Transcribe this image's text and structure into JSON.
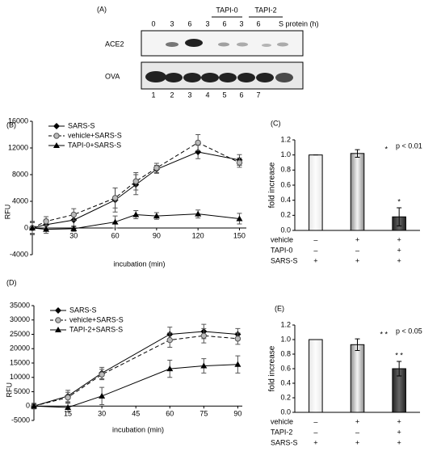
{
  "blot": {
    "label": "(A)",
    "lanes": [
      "0",
      "3",
      "6",
      "3",
      "6",
      "3",
      "6"
    ],
    "unit_label": "S protein (h)",
    "groups": [
      "TAPI-0",
      "TAPI-2"
    ],
    "rows": [
      "ACE2",
      "OVA"
    ],
    "lane_numbers": [
      "1",
      "2",
      "3",
      "4",
      "5",
      "6",
      "7"
    ]
  },
  "chart_data": [
    {
      "type": "line",
      "panel": "(B)",
      "ylabel": "RFU",
      "xlabel": "incubation (min)",
      "xlim": [
        0,
        155
      ],
      "xticks": [
        30,
        60,
        90,
        120,
        150
      ],
      "ylim": [
        -4000,
        16000
      ],
      "yticks": [
        -4000,
        0,
        4000,
        8000,
        12000,
        16000
      ],
      "legend": "upper left",
      "x": [
        0,
        10,
        30,
        60,
        75,
        90,
        120,
        150
      ],
      "series": [
        {
          "name": "SARS-S",
          "color": "#000000",
          "marker": "diamond",
          "linestyle": "solid",
          "values": [
            0,
            500,
            1200,
            4200,
            6500,
            8800,
            11400,
            10200
          ],
          "errors": [
            1000,
            800,
            1000,
            1800,
            1500,
            600,
            1000,
            800
          ]
        },
        {
          "name": "vehicle+SARS-S",
          "color": "#999999",
          "marker": "circle",
          "linestyle": "dashed",
          "values": [
            0,
            1000,
            2000,
            4500,
            7000,
            9000,
            12800,
            9800
          ],
          "errors": [
            800,
            700,
            900,
            1500,
            1300,
            700,
            1200,
            700
          ]
        },
        {
          "name": "TAPI-0+SARS-S",
          "color": "#000000",
          "marker": "triangle",
          "linestyle": "solid",
          "values": [
            0,
            -200,
            -100,
            900,
            2000,
            1800,
            2100,
            1400
          ],
          "errors": [
            900,
            600,
            400,
            900,
            600,
            500,
            600,
            800
          ]
        }
      ]
    },
    {
      "type": "bar",
      "panel": "(C)",
      "ylabel": "fold increase",
      "ylim": [
        0,
        1.2
      ],
      "yticks": [
        {
          "value": 0,
          "label": "0.0"
        },
        {
          "value": 0.2,
          "label": "0.2"
        },
        {
          "value": 0.4,
          "label": "0.4"
        },
        {
          "value": 0.6,
          "label": "0.6"
        },
        {
          "value": 0.8,
          "label": "0.8"
        },
        {
          "value": 1,
          "label": "1.0"
        },
        {
          "value": 1.2,
          "label": "1.2"
        }
      ],
      "values": [
        1.0,
        1.02,
        0.18
      ],
      "errors": [
        0,
        0.05,
        0.12
      ],
      "colors": [
        "#e6e6e6",
        "#8a8a8a",
        "#202020"
      ],
      "significance": {
        "p_text": "p < 0.01",
        "legend_mark": "*",
        "bar_marks": [
          null,
          null,
          "*"
        ]
      },
      "conditions": [
        {
          "name": "vehicle",
          "signs": [
            "–",
            "+",
            "+"
          ]
        },
        {
          "name": "TAPI-0",
          "signs": [
            "–",
            "–",
            "+"
          ]
        },
        {
          "name": "SARS-S",
          "signs": [
            "+",
            "+",
            "+"
          ]
        }
      ]
    },
    {
      "type": "line",
      "panel": "(D)",
      "ylabel": "RFU",
      "xlabel": "incubation (min)",
      "xlim": [
        0,
        92
      ],
      "xticks": [
        15,
        30,
        45,
        60,
        75,
        90
      ],
      "ylim": [
        -5000,
        35000
      ],
      "yticks": [
        -5000,
        0,
        5000,
        10000,
        15000,
        20000,
        25000,
        30000,
        35000
      ],
      "legend": "upper left",
      "x": [
        0,
        15,
        30,
        60,
        75,
        90
      ],
      "series": [
        {
          "name": "SARS-S",
          "color": "#000000",
          "marker": "diamond",
          "linestyle": "solid",
          "values": [
            0,
            3500,
            11500,
            25000,
            26000,
            25000
          ],
          "errors": [
            1000,
            2000,
            2000,
            2500,
            2500,
            2000
          ]
        },
        {
          "name": "vehicle+SARS-S",
          "color": "#999999",
          "marker": "circle",
          "linestyle": "dashed",
          "values": [
            0,
            3000,
            11000,
            23000,
            24500,
            23500
          ],
          "errors": [
            800,
            1800,
            1800,
            2500,
            2500,
            2000
          ]
        },
        {
          "name": "TAPI-2+SARS-S",
          "color": "#000000",
          "marker": "triangle",
          "linestyle": "solid",
          "values": [
            0,
            -500,
            3500,
            13000,
            14000,
            14500
          ],
          "errors": [
            500,
            1500,
            3000,
            3000,
            2500,
            3000
          ]
        }
      ]
    },
    {
      "type": "bar",
      "panel": "(E)",
      "ylabel": "fold increase",
      "ylim": [
        0,
        1.2
      ],
      "yticks": [
        {
          "value": 0,
          "label": "0.0"
        },
        {
          "value": 0.2,
          "label": "0.2"
        },
        {
          "value": 0.4,
          "label": "0.4"
        },
        {
          "value": 0.6,
          "label": "0.6"
        },
        {
          "value": 0.8,
          "label": "0.8"
        },
        {
          "value": 1,
          "label": "1.0"
        },
        {
          "value": 1.2,
          "label": "1.2"
        }
      ],
      "values": [
        1.0,
        0.93,
        0.6
      ],
      "errors": [
        0,
        0.08,
        0.1
      ],
      "colors": [
        "#e6e6e6",
        "#8a8a8a",
        "#202020"
      ],
      "significance": {
        "p_text": "p < 0.05",
        "legend_mark": "* *",
        "bar_marks": [
          null,
          null,
          "* *"
        ]
      },
      "conditions": [
        {
          "name": "vehicle",
          "signs": [
            "–",
            "+",
            "+"
          ]
        },
        {
          "name": "TAPI-2",
          "signs": [
            "–",
            "–",
            "+"
          ]
        },
        {
          "name": "SARS-S",
          "signs": [
            "+",
            "+",
            "+"
          ]
        }
      ]
    }
  ]
}
